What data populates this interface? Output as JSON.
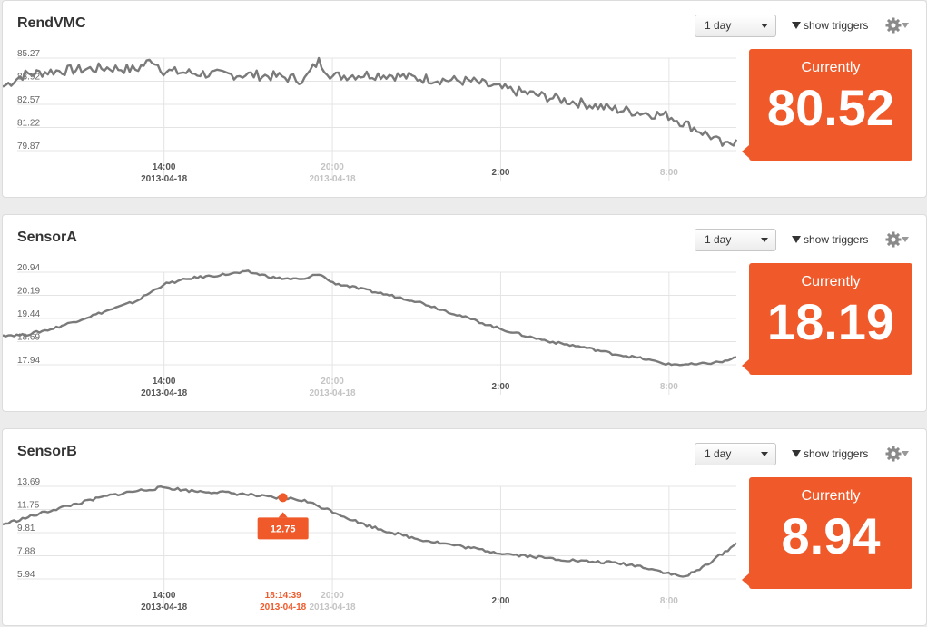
{
  "common": {
    "range_label": "1 day",
    "triggers_label": "show triggers",
    "currently_label": "Currently",
    "x_ticks": [
      {
        "t": 14,
        "label": "14:00",
        "sub": "2013-04-18",
        "dim": false
      },
      {
        "t": 20,
        "label": "20:00",
        "sub": "2013-04-18",
        "dim": true
      },
      {
        "t": 26,
        "label": "2:00",
        "sub": "",
        "dim": false
      },
      {
        "t": 32,
        "label": "8:00",
        "sub": "",
        "dim": true
      }
    ],
    "colors": {
      "line": "#7a7a7a",
      "accent": "#f0592a",
      "grid": "#e4e4e4"
    }
  },
  "panels": [
    {
      "title": "RendVMC",
      "current": "80.52",
      "chart_data": {
        "type": "line",
        "x_unit": "hour of day (2013-04-18)",
        "xlim": [
          8.25,
          34.4
        ],
        "ylim": [
          79.87,
          85.27
        ],
        "yticks": [
          "85.27",
          "83.92",
          "82.57",
          "81.22",
          "79.87"
        ],
        "x": [
          8.25,
          9,
          10,
          11,
          12,
          13,
          13.6,
          14,
          15,
          16,
          17,
          18,
          19,
          19.5,
          20,
          21,
          22,
          23,
          24,
          25,
          26,
          27,
          28,
          29,
          30,
          31,
          32,
          32.5,
          33,
          33.5,
          34,
          34.4
        ],
        "values": [
          83.6,
          84.3,
          84.5,
          84.6,
          84.7,
          84.6,
          85.2,
          84.5,
          84.4,
          84.3,
          84.3,
          84.2,
          84.0,
          85.1,
          84.2,
          84.3,
          84.3,
          84.1,
          84.0,
          83.9,
          83.5,
          83.2,
          82.9,
          82.6,
          82.3,
          82.1,
          81.9,
          81.5,
          81.1,
          80.7,
          80.1,
          80.52
        ],
        "noise": 0.3
      }
    },
    {
      "title": "SensorA",
      "current": "18.19",
      "chart_data": {
        "type": "line",
        "x_unit": "hour of day (2013-04-18)",
        "xlim": [
          8.25,
          34.4
        ],
        "ylim": [
          17.94,
          20.94
        ],
        "yticks": [
          "20.94",
          "20.19",
          "19.44",
          "18.69",
          "17.94"
        ],
        "x": [
          8.25,
          9,
          10,
          11,
          12,
          13,
          14,
          15,
          16,
          17,
          18,
          19,
          19.5,
          20,
          21,
          22,
          23,
          24,
          25,
          26,
          27,
          28,
          29,
          30,
          31,
          32,
          33,
          34,
          34.4
        ],
        "values": [
          18.9,
          18.9,
          19.1,
          19.4,
          19.7,
          20.0,
          20.55,
          20.75,
          20.85,
          20.95,
          20.75,
          20.7,
          20.9,
          20.6,
          20.4,
          20.2,
          20.0,
          19.7,
          19.4,
          19.1,
          18.85,
          18.65,
          18.5,
          18.3,
          18.15,
          17.95,
          17.95,
          18.05,
          18.19
        ],
        "noise": 0.04
      }
    },
    {
      "title": "SensorB",
      "current": "8.94",
      "tooltip": {
        "value": "12.75",
        "time": "18:14:39",
        "date": "2013-04-18",
        "t": 18.24,
        "v": 12.75
      },
      "chart_data": {
        "type": "line",
        "x_unit": "hour of day (2013-04-18)",
        "xlim": [
          8.25,
          34.4
        ],
        "ylim": [
          5.94,
          13.69
        ],
        "yticks": [
          "13.69",
          "11.75",
          "9.81",
          "7.88",
          "5.94"
        ],
        "x": [
          8.25,
          9,
          10,
          11,
          12,
          13,
          14,
          15,
          16,
          17,
          18,
          18.24,
          19,
          20,
          21,
          22,
          23,
          24,
          25,
          26,
          27,
          28,
          29,
          30,
          31,
          32,
          32.5,
          33,
          34,
          34.4
        ],
        "values": [
          10.5,
          11.0,
          11.7,
          12.3,
          12.9,
          13.3,
          13.6,
          13.3,
          13.2,
          13.0,
          12.7,
          12.75,
          12.5,
          11.6,
          10.6,
          9.9,
          9.3,
          8.9,
          8.5,
          8.1,
          7.85,
          7.6,
          7.4,
          7.3,
          7.0,
          6.4,
          6.1,
          6.6,
          8.2,
          8.94
        ],
        "noise": 0.12
      }
    }
  ]
}
